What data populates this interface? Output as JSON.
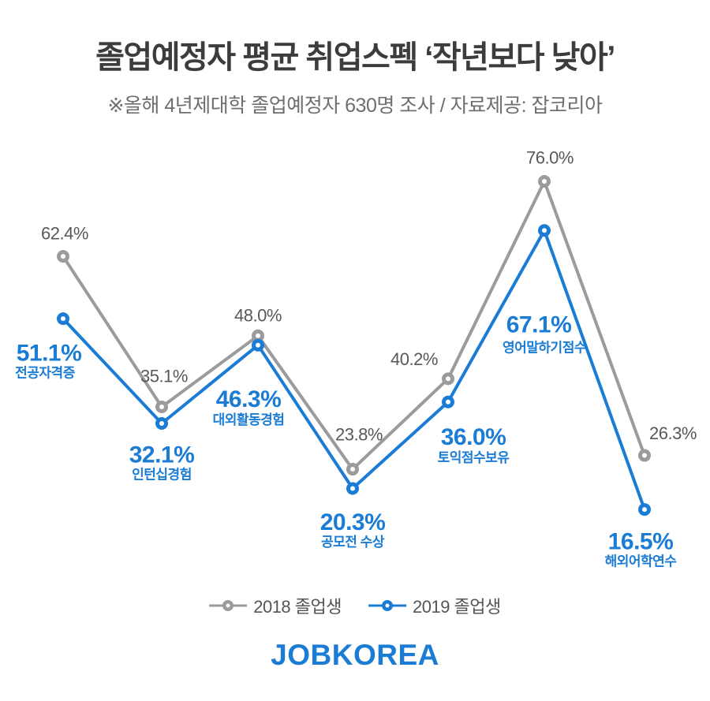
{
  "header": {
    "title": "졸업예정자 평균 취업스펙 ‘작년보다 낮아’",
    "subtitle": "※올해 4년제대학 졸업예정자 630명 조사  / 자료제공: 잡코리아"
  },
  "chart_data": {
    "type": "line",
    "categories": [
      "전공자격증",
      "인턴십경험",
      "대외활동경험",
      "공모전 수상",
      "토익점수보유",
      "영어말하기점수",
      "해외어학연수"
    ],
    "series": [
      {
        "name": "2018 졸업생",
        "color": "#9b9b9b",
        "values": [
          62.4,
          35.1,
          48.0,
          23.8,
          40.2,
          76.0,
          26.3
        ]
      },
      {
        "name": "2019 졸업생",
        "color": "#1a7cd4",
        "values": [
          51.1,
          32.1,
          46.3,
          20.3,
          36.0,
          67.1,
          16.5
        ]
      }
    ],
    "value_suffix": "%",
    "ylim": [
      10,
      82
    ],
    "grid": false,
    "legend_position": "bottom"
  },
  "legend": {
    "items": [
      {
        "label": "2018 졸업생"
      },
      {
        "label": "2019 졸업생"
      }
    ]
  },
  "footer": {
    "logo_text": "JOBKOREA"
  },
  "colors": {
    "accent_blue": "#1a7cd4",
    "series_gray": "#9b9b9b",
    "value_label_gray": "#585858",
    "title_dark": "#3c3c3c",
    "subtitle_gray": "#6e6e6e"
  }
}
